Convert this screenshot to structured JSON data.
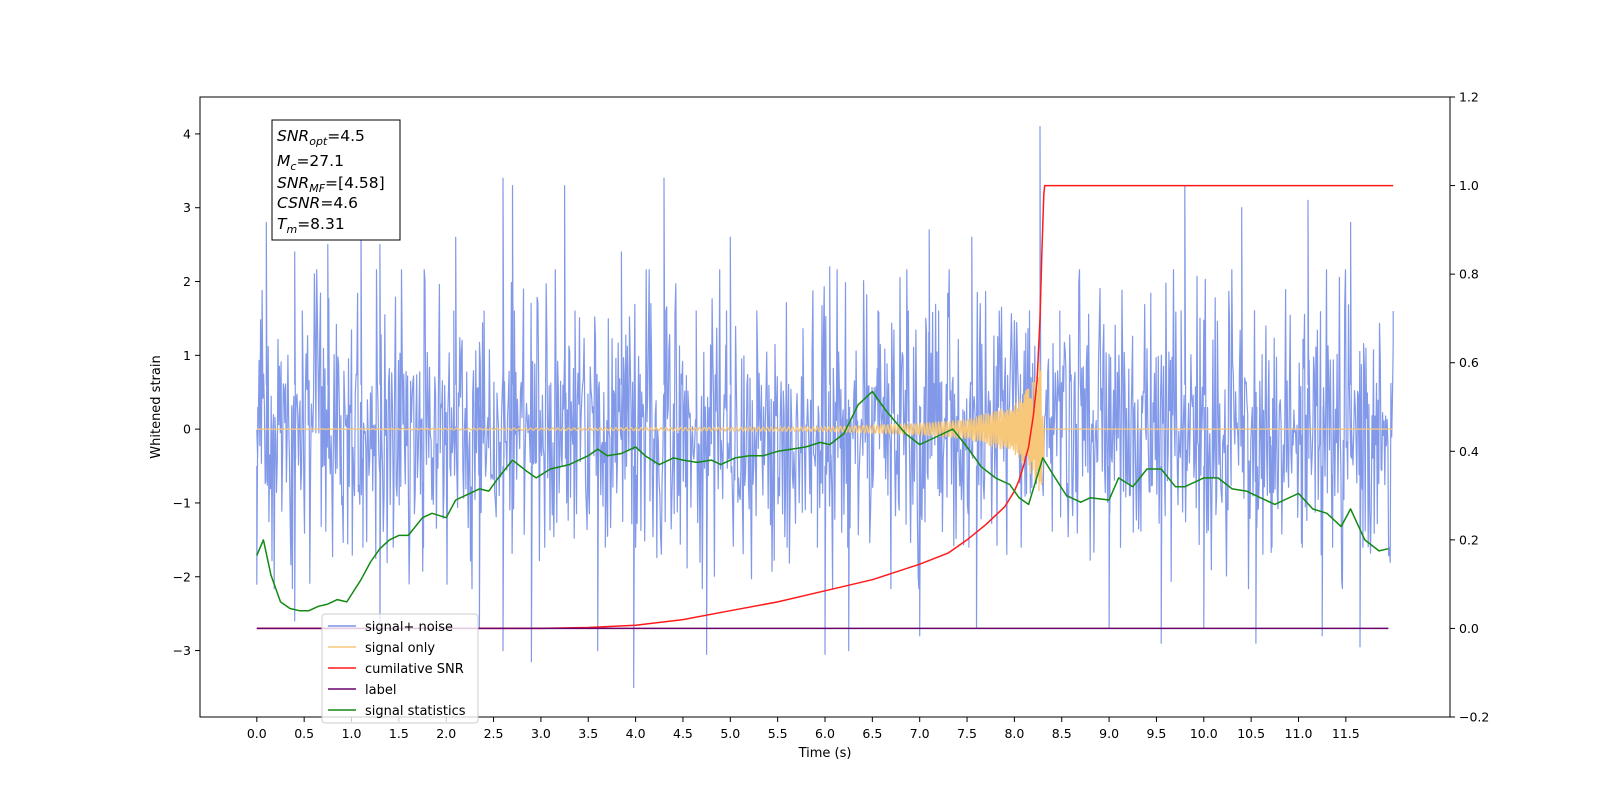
{
  "chart_data": {
    "type": "line",
    "xlabel": "Time (s)",
    "ylabel": "Whitened strain",
    "xlim": [
      -0.6,
      12.6
    ],
    "ylim": [
      -3.9,
      4.5
    ],
    "y2lim": [
      -0.2,
      1.2
    ],
    "x_ticks": [
      "0.0",
      "0.5",
      "1.0",
      "1.5",
      "2.0",
      "2.5",
      "3.0",
      "3.5",
      "4.0",
      "4.5",
      "5.0",
      "5.5",
      "6.0",
      "6.5",
      "7.0",
      "7.5",
      "8.0",
      "8.5",
      "9.0",
      "9.5",
      "10.0",
      "10.5",
      "11.0",
      "11.5"
    ],
    "y_ticks": [
      "4",
      "3",
      "2",
      "1",
      "0",
      "−1",
      "−2",
      "−3"
    ],
    "y2_ticks": [
      "1.2",
      "1.0",
      "0.8",
      "0.6",
      "0.4",
      "0.2",
      "0.0",
      "−0.2"
    ],
    "info_box": [
      {
        "main": "SNR",
        "sub": "opt",
        "value": "=4.5"
      },
      {
        "main": "M",
        "sub": "c",
        "value": "=27.1"
      },
      {
        "main": "SNR",
        "sub": "MF",
        "value": "=[4.58]"
      },
      {
        "main": "CSNR",
        "sub": "",
        "value": "=4.6"
      },
      {
        "main": "T",
        "sub": "m",
        "value": "=8.31"
      }
    ],
    "legend": {
      "placement": "lower-left",
      "entries": [
        {
          "label": "signal+ noise",
          "color": "#7b93e8"
        },
        {
          "label": "signal only",
          "color": "#f7c77a"
        },
        {
          "label": "cumilative SNR",
          "color": "#ff1a1a"
        },
        {
          "label": "label",
          "color": "#6b006b"
        },
        {
          "label": "signal statistics",
          "color": "#138a13"
        }
      ]
    },
    "series": [
      {
        "name": "signal+ noise",
        "axis": "left",
        "kind": "noise",
        "x_range": [
          0.0,
          12.0
        ],
        "envelope_typical": [
          -1.6,
          1.6
        ],
        "peaks": [
          [
            0.1,
            2.8
          ],
          [
            0.4,
            2.4
          ],
          [
            0.75,
            2.5
          ],
          [
            1.1,
            2.9
          ],
          [
            1.3,
            2.5
          ],
          [
            2.1,
            2.6
          ],
          [
            2.6,
            3.4
          ],
          [
            2.7,
            3.3
          ],
          [
            3.25,
            3.3
          ],
          [
            3.85,
            2.4
          ],
          [
            4.3,
            3.4
          ],
          [
            5.0,
            2.6
          ],
          [
            6.05,
            2.2
          ],
          [
            7.1,
            2.7
          ],
          [
            7.55,
            2.6
          ],
          [
            8.27,
            4.1
          ],
          [
            9.8,
            3.3
          ],
          [
            10.4,
            3.0
          ],
          [
            11.1,
            3.1
          ],
          [
            11.55,
            2.8
          ]
        ],
        "troughs": [
          [
            0.0,
            -2.1
          ],
          [
            0.4,
            -2.6
          ],
          [
            1.3,
            -2.8
          ],
          [
            2.35,
            -2.7
          ],
          [
            2.6,
            -3.0
          ],
          [
            2.9,
            -3.15
          ],
          [
            3.6,
            -3.0
          ],
          [
            3.98,
            -3.5
          ],
          [
            4.75,
            -3.05
          ],
          [
            6.0,
            -3.05
          ],
          [
            6.25,
            -3.0
          ],
          [
            7.0,
            -2.8
          ],
          [
            7.6,
            -2.7
          ],
          [
            9.0,
            -2.7
          ],
          [
            9.55,
            -2.9
          ],
          [
            10.0,
            -2.7
          ],
          [
            10.55,
            -2.9
          ],
          [
            11.25,
            -2.8
          ],
          [
            11.65,
            -2.95
          ]
        ]
      },
      {
        "name": "signal only",
        "axis": "left",
        "kind": "chirp",
        "x_range": [
          0.0,
          12.0
        ],
        "merger_time": 8.31,
        "amplitude": [
          [
            0.0,
            0.0
          ],
          [
            6.0,
            0.03
          ],
          [
            7.0,
            0.08
          ],
          [
            7.5,
            0.13
          ],
          [
            8.0,
            0.33
          ],
          [
            8.2,
            0.65
          ],
          [
            8.29,
            1.0
          ],
          [
            8.32,
            0.0
          ],
          [
            12.0,
            0.0
          ]
        ]
      },
      {
        "name": "cumilative SNR",
        "axis": "right",
        "x": [
          0.0,
          1.0,
          2.0,
          3.0,
          3.5,
          4.0,
          4.5,
          5.0,
          5.5,
          6.0,
          6.5,
          7.0,
          7.3,
          7.5,
          7.7,
          7.9,
          8.0,
          8.05,
          8.1,
          8.15,
          8.2,
          8.24,
          8.27,
          8.29,
          8.31,
          8.32,
          12.0
        ],
        "values": [
          0.0,
          0.0,
          0.0,
          0.0,
          0.002,
          0.007,
          0.02,
          0.04,
          0.06,
          0.085,
          0.11,
          0.145,
          0.17,
          0.2,
          0.235,
          0.275,
          0.31,
          0.335,
          0.37,
          0.41,
          0.48,
          0.56,
          0.7,
          0.85,
          0.98,
          1.0,
          1.0
        ]
      },
      {
        "name": "label",
        "axis": "right",
        "x": [
          0.0,
          11.95
        ],
        "values": [
          0.0,
          0.0
        ]
      },
      {
        "name": "signal statistics",
        "axis": "right",
        "x": [
          0.0,
          0.07,
          0.15,
          0.25,
          0.35,
          0.45,
          0.55,
          0.65,
          0.75,
          0.85,
          0.95,
          1.1,
          1.2,
          1.3,
          1.4,
          1.5,
          1.6,
          1.75,
          1.85,
          2.0,
          2.1,
          2.2,
          2.35,
          2.45,
          2.55,
          2.7,
          2.85,
          2.95,
          3.1,
          3.3,
          3.5,
          3.6,
          3.7,
          3.85,
          4.0,
          4.1,
          4.25,
          4.4,
          4.5,
          4.65,
          4.8,
          4.9,
          5.05,
          5.2,
          5.35,
          5.5,
          5.65,
          5.8,
          5.95,
          6.05,
          6.2,
          6.35,
          6.5,
          6.65,
          6.85,
          7.0,
          7.15,
          7.35,
          7.5,
          7.65,
          7.8,
          7.95,
          8.05,
          8.15,
          8.25,
          8.3,
          8.4,
          8.55,
          8.7,
          8.8,
          9.0,
          9.1,
          9.25,
          9.4,
          9.55,
          9.7,
          9.8,
          10.0,
          10.15,
          10.3,
          10.45,
          10.6,
          10.75,
          10.85,
          11.0,
          11.15,
          11.3,
          11.45,
          11.55,
          11.7,
          11.85,
          11.95
        ],
        "values": [
          0.165,
          0.2,
          0.12,
          0.06,
          0.045,
          0.04,
          0.04,
          0.05,
          0.055,
          0.065,
          0.06,
          0.11,
          0.15,
          0.18,
          0.2,
          0.21,
          0.21,
          0.25,
          0.26,
          0.25,
          0.29,
          0.3,
          0.315,
          0.31,
          0.34,
          0.38,
          0.355,
          0.34,
          0.36,
          0.37,
          0.39,
          0.405,
          0.39,
          0.395,
          0.41,
          0.39,
          0.37,
          0.385,
          0.38,
          0.375,
          0.38,
          0.37,
          0.385,
          0.39,
          0.39,
          0.4,
          0.405,
          0.41,
          0.42,
          0.415,
          0.44,
          0.505,
          0.535,
          0.49,
          0.44,
          0.415,
          0.43,
          0.45,
          0.41,
          0.365,
          0.34,
          0.325,
          0.295,
          0.28,
          0.35,
          0.385,
          0.35,
          0.3,
          0.285,
          0.295,
          0.29,
          0.34,
          0.32,
          0.36,
          0.36,
          0.32,
          0.32,
          0.34,
          0.34,
          0.315,
          0.31,
          0.295,
          0.28,
          0.29,
          0.305,
          0.27,
          0.26,
          0.23,
          0.27,
          0.2,
          0.175,
          0.18
        ]
      }
    ]
  }
}
